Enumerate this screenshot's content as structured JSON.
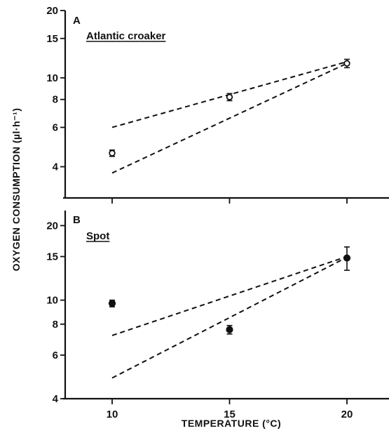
{
  "chart_data": {
    "type": "scatter",
    "xlabel": "TEMPERATURE (°C)",
    "ylabel": "OXYGEN CONSUMPTION (µl·h⁻¹)",
    "x_ticks": [
      10,
      15,
      20
    ],
    "panels": [
      {
        "letter": "A",
        "species": "Atlantic croaker",
        "marker": "open",
        "y_scale": "log",
        "y_range": [
          2.9,
          20
        ],
        "y_ticks": [
          4,
          6,
          8,
          10,
          15,
          20
        ],
        "points": [
          {
            "x": 10,
            "y": 4.6,
            "err": 0.15
          },
          {
            "x": 15,
            "y": 8.2,
            "err": 0.3
          },
          {
            "x": 20,
            "y": 11.6,
            "err": 0.5
          }
        ],
        "fit_lines": [
          {
            "x": [
              10,
              20
            ],
            "y": [
              6.0,
              11.8
            ]
          },
          {
            "x": [
              10,
              20
            ],
            "y": [
              3.75,
              11.6
            ]
          }
        ]
      },
      {
        "letter": "B",
        "species": "Spot",
        "marker": "filled",
        "y_scale": "log",
        "y_range": [
          4,
          23
        ],
        "y_ticks": [
          4,
          6,
          8,
          10,
          15,
          20
        ],
        "points": [
          {
            "x": 10,
            "y": 9.7,
            "err": 0.3
          },
          {
            "x": 15,
            "y": 7.6,
            "err": 0.3
          },
          {
            "x": 20,
            "y": 14.8,
            "err": 1.6
          }
        ],
        "fit_lines": [
          {
            "x": [
              10,
              20
            ],
            "y": [
              7.2,
              15.0
            ]
          },
          {
            "x": [
              10,
              20
            ],
            "y": [
              4.85,
              14.9
            ]
          }
        ]
      }
    ]
  }
}
